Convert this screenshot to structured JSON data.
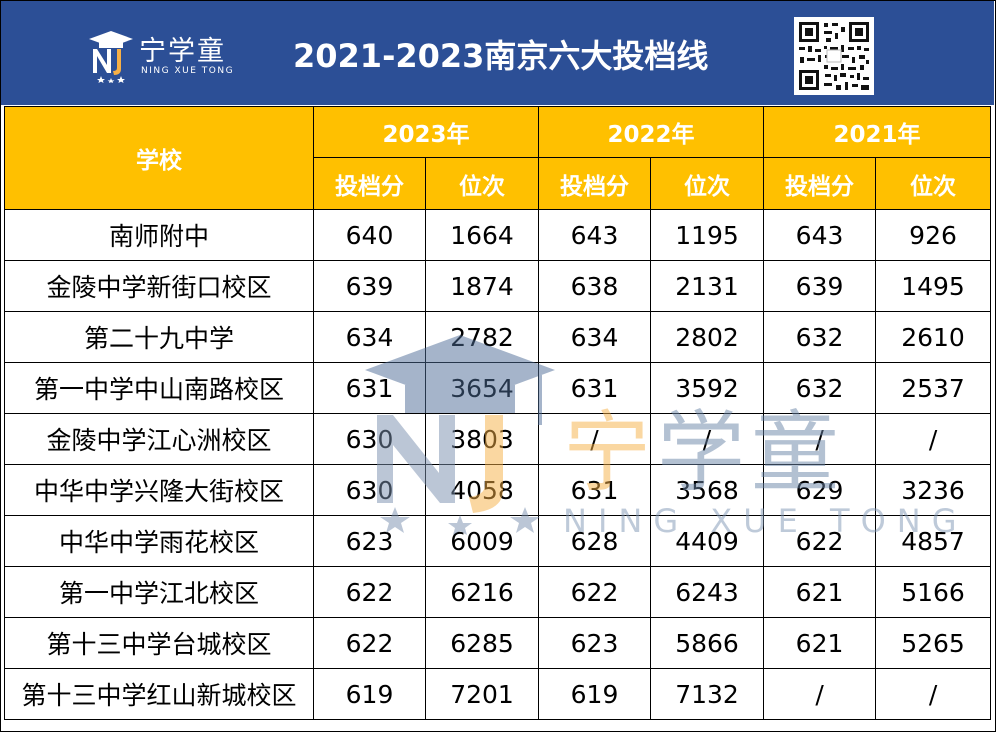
{
  "header": {
    "logo_cn": "宁学童",
    "logo_en": "NING XUE TONG",
    "title": "2021-2023南京六大投档线"
  },
  "table": {
    "school_header": "学校",
    "years": [
      "2023年",
      "2022年",
      "2021年"
    ],
    "sub_headers": [
      "投档分",
      "位次",
      "投档分",
      "位次",
      "投档分",
      "位次"
    ],
    "rows": [
      {
        "school": "南师附中",
        "cells": [
          "640",
          "1664",
          "643",
          "1195",
          "643",
          "926"
        ]
      },
      {
        "school": "金陵中学新街口校区",
        "cells": [
          "639",
          "1874",
          "638",
          "2131",
          "639",
          "1495"
        ]
      },
      {
        "school": "第二十九中学",
        "cells": [
          "634",
          "2782",
          "634",
          "2802",
          "632",
          "2610"
        ]
      },
      {
        "school": "第一中学中山南路校区",
        "cells": [
          "631",
          "3654",
          "631",
          "3592",
          "632",
          "2537"
        ]
      },
      {
        "school": "金陵中学江心洲校区",
        "cells": [
          "630",
          "3803",
          "/",
          "/",
          "/",
          "/"
        ]
      },
      {
        "school": "中华中学兴隆大街校区",
        "cells": [
          "630",
          "4058",
          "631",
          "3568",
          "629",
          "3236"
        ]
      },
      {
        "school": "中华中学雨花校区",
        "cells": [
          "623",
          "6009",
          "628",
          "4409",
          "622",
          "4857"
        ]
      },
      {
        "school": "第一中学江北校区",
        "cells": [
          "622",
          "6216",
          "622",
          "6243",
          "621",
          "5166"
        ]
      },
      {
        "school": "第十三中学台城校区",
        "cells": [
          "622",
          "6285",
          "623",
          "5866",
          "621",
          "5265"
        ]
      },
      {
        "school": "第十三中学红山新城校区",
        "cells": [
          "619",
          "7201",
          "619",
          "7132",
          "/",
          "/"
        ]
      }
    ]
  },
  "watermark": {
    "cn": [
      "宁",
      "学",
      "童"
    ],
    "en": "NING XUE TONG"
  },
  "colors": {
    "header_bg": "#2c4f96",
    "table_header_bg": "#ffc000",
    "watermark_orange": "#f7b046",
    "watermark_blue": "#6a84a6"
  }
}
